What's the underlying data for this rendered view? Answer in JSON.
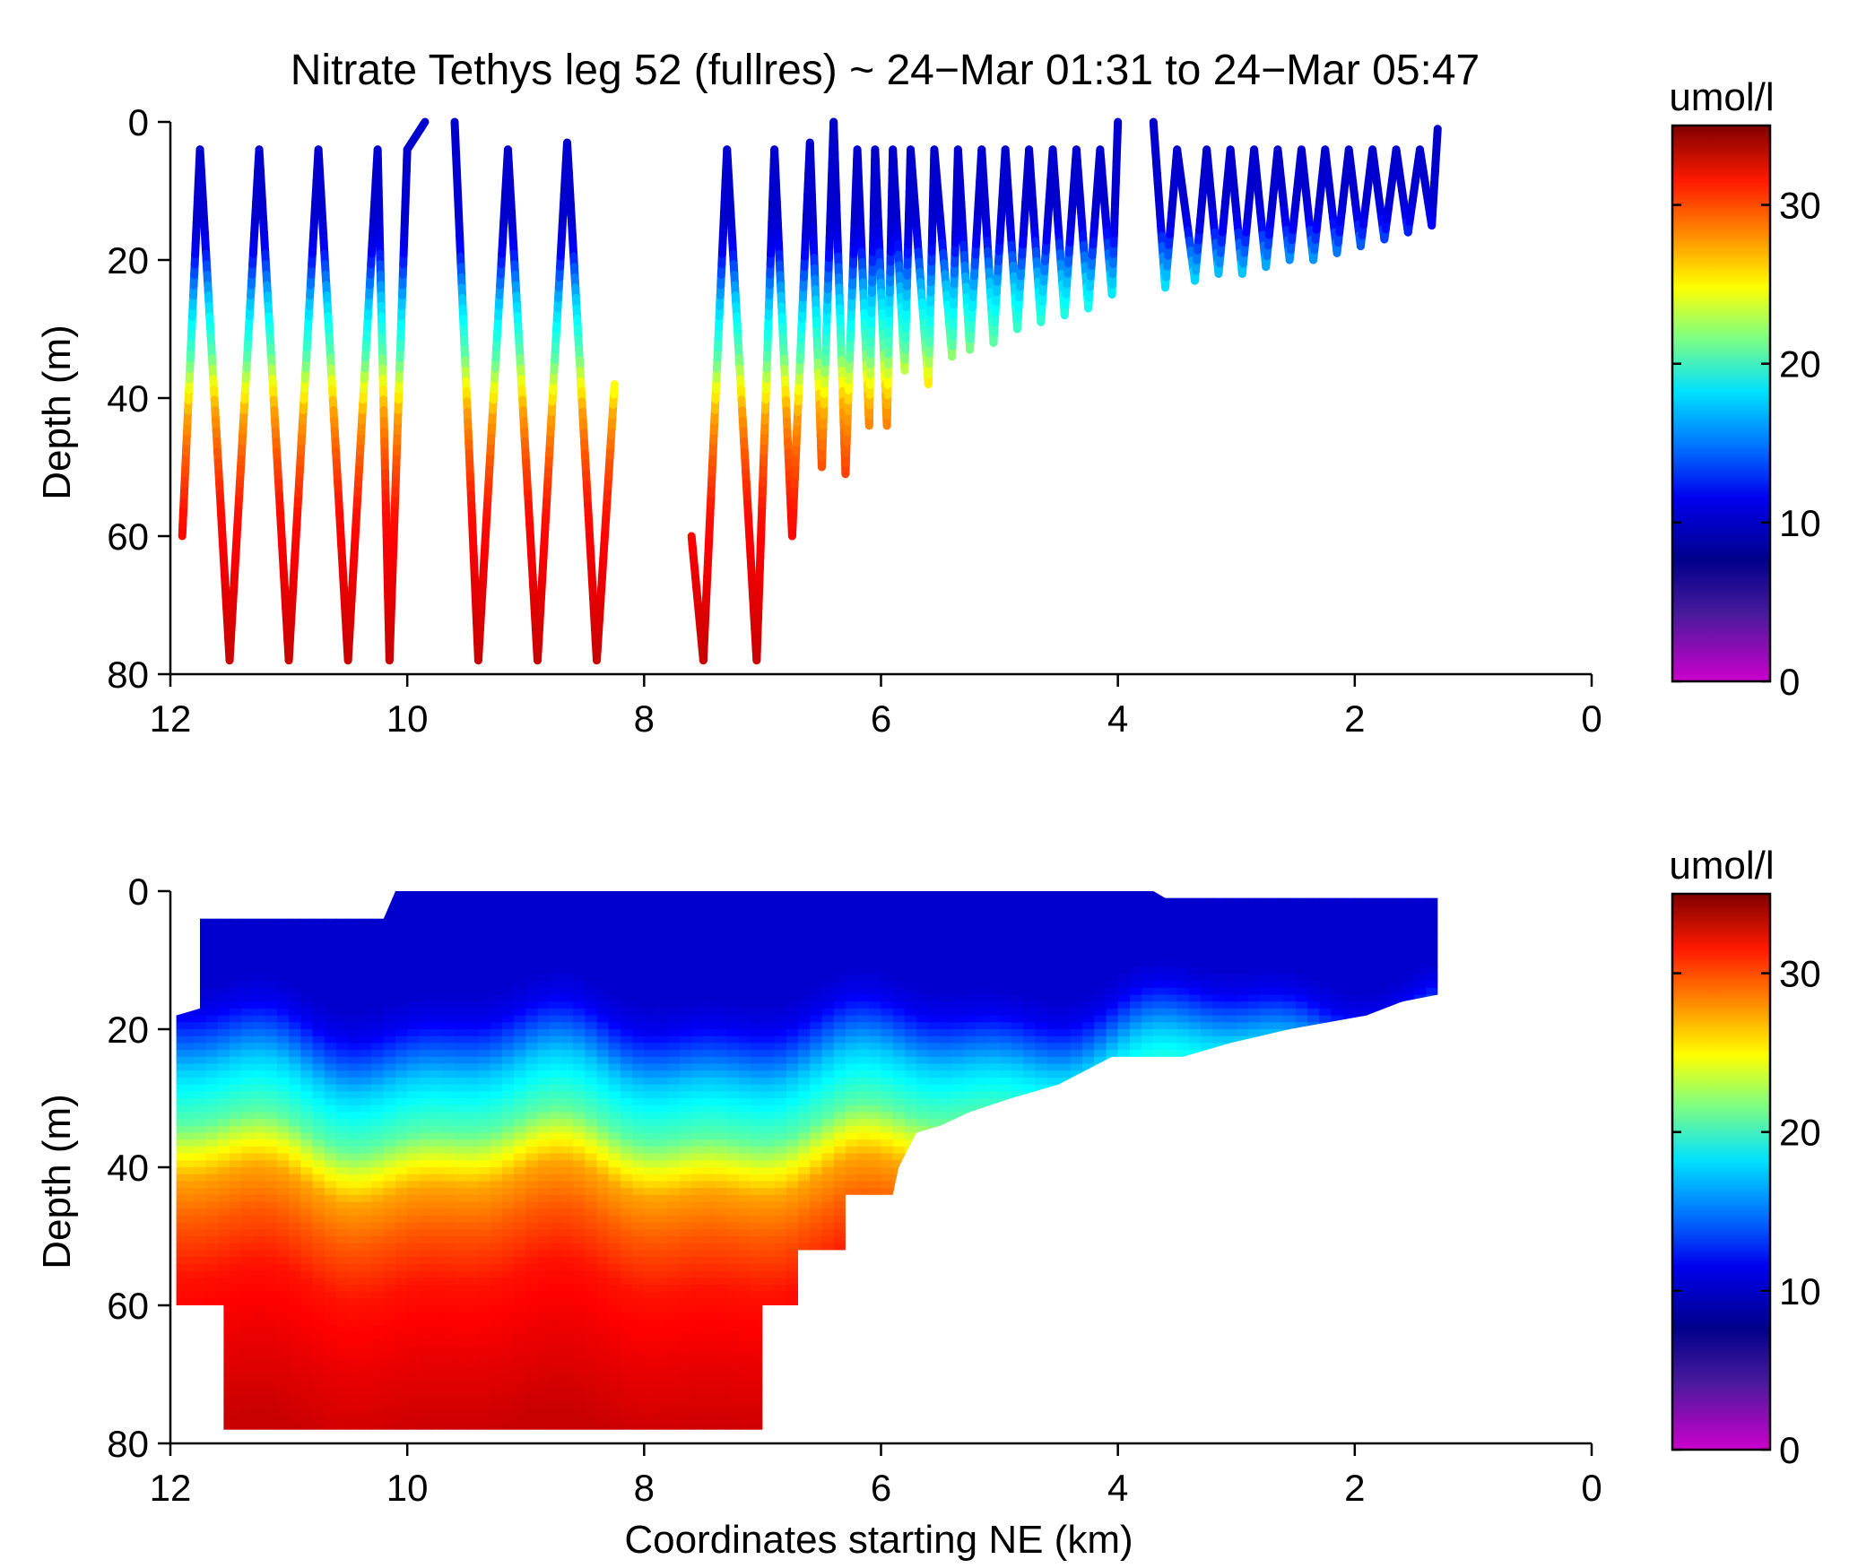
{
  "figure": {
    "title": "Nitrate Tethys leg 52 (fullres) ~ 24−Mar 01:31 to 24−Mar 05:47"
  },
  "colorbar": {
    "label": "umol/l",
    "range": [
      0,
      35
    ],
    "ticks": [
      "0",
      "10",
      "20",
      "30"
    ],
    "tick_values": [
      0,
      10,
      20,
      30
    ],
    "colormap": [
      "#cc00cc",
      "#2020a0",
      "#00008c",
      "#0000ff",
      "#0080ff",
      "#00ffff",
      "#80ff80",
      "#ffff00",
      "#ff8000",
      "#ff0000",
      "#800000"
    ]
  },
  "chart_data": [
    {
      "type": "scatter",
      "description_key": "top",
      "xlabel": "",
      "ylabel": "Depth (m)",
      "xlim": [
        12,
        0
      ],
      "ylim": [
        80,
        0
      ],
      "x_ticks": [
        "12",
        "10",
        "8",
        "6",
        "4",
        "2",
        "0"
      ],
      "x_tick_values": [
        12,
        10,
        8,
        6,
        4,
        2,
        0
      ],
      "y_ticks": [
        "0",
        "20",
        "40",
        "60",
        "80"
      ],
      "y_tick_values": [
        0,
        20,
        40,
        60,
        80
      ],
      "clim": [
        0,
        35
      ],
      "profiles": [
        {
          "segments": [
            [
              11.9,
              60
            ],
            [
              11.75,
              4
            ],
            [
              11.5,
              78
            ],
            [
              11.25,
              4
            ],
            [
              11.0,
              78
            ],
            [
              10.75,
              4
            ],
            [
              10.5,
              78
            ],
            [
              10.25,
              4
            ],
            [
              10.15,
              78
            ],
            [
              10.0,
              4
            ],
            [
              9.85,
              0
            ]
          ]
        },
        {
          "segments": [
            [
              9.6,
              0
            ],
            [
              9.4,
              78
            ],
            [
              9.15,
              4
            ],
            [
              8.9,
              78
            ],
            [
              8.65,
              3
            ],
            [
              8.4,
              78
            ],
            [
              8.25,
              38
            ]
          ]
        },
        {
          "segments": [
            [
              7.6,
              60
            ],
            [
              7.5,
              78
            ],
            [
              7.3,
              4
            ],
            [
              7.05,
              78
            ],
            [
              6.9,
              4
            ],
            [
              6.75,
              60
            ],
            [
              6.6,
              3
            ],
            [
              6.5,
              50
            ],
            [
              6.4,
              0
            ],
            [
              6.3,
              51
            ],
            [
              6.2,
              4
            ],
            [
              6.1,
              44
            ],
            [
              6.05,
              4
            ],
            [
              5.95,
              44
            ],
            [
              5.9,
              4
            ],
            [
              5.8,
              36
            ],
            [
              5.75,
              4
            ],
            [
              5.6,
              38
            ],
            [
              5.55,
              4
            ],
            [
              5.4,
              34
            ],
            [
              5.35,
              4
            ],
            [
              5.25,
              33
            ],
            [
              5.15,
              4
            ],
            [
              5.05,
              32
            ],
            [
              4.95,
              4
            ],
            [
              4.85,
              30
            ],
            [
              4.75,
              4
            ],
            [
              4.65,
              29
            ],
            [
              4.55,
              4
            ],
            [
              4.45,
              28
            ],
            [
              4.35,
              4
            ],
            [
              4.25,
              27
            ],
            [
              4.15,
              4
            ],
            [
              4.05,
              25
            ],
            [
              4.0,
              0
            ]
          ]
        },
        {
          "segments": [
            [
              3.7,
              0
            ],
            [
              3.6,
              24
            ],
            [
              3.5,
              4
            ],
            [
              3.35,
              23
            ],
            [
              3.25,
              4
            ],
            [
              3.15,
              22
            ],
            [
              3.05,
              4
            ],
            [
              2.95,
              22
            ],
            [
              2.85,
              4
            ],
            [
              2.75,
              21
            ],
            [
              2.65,
              4
            ],
            [
              2.55,
              20
            ],
            [
              2.45,
              4
            ],
            [
              2.35,
              20
            ],
            [
              2.25,
              4
            ],
            [
              2.15,
              19
            ],
            [
              2.05,
              4
            ],
            [
              1.95,
              18
            ],
            [
              1.85,
              4
            ],
            [
              1.75,
              17
            ],
            [
              1.65,
              4
            ],
            [
              1.55,
              16
            ],
            [
              1.45,
              4
            ],
            [
              1.35,
              15
            ],
            [
              1.3,
              1
            ]
          ]
        }
      ]
    },
    {
      "type": "heatmap",
      "description_key": "bottom",
      "xlabel": "Coordinates starting NE (km)",
      "ylabel": "Depth (m)",
      "xlim": [
        12,
        0
      ],
      "ylim": [
        80,
        0
      ],
      "x_ticks": [
        "12",
        "10",
        "8",
        "6",
        "4",
        "2",
        "0"
      ],
      "x_tick_values": [
        12,
        10,
        8,
        6,
        4,
        2,
        0
      ],
      "y_ticks": [
        "0",
        "20",
        "40",
        "60",
        "80"
      ],
      "y_tick_values": [
        0,
        20,
        40,
        60,
        80
      ],
      "clim": [
        0,
        35
      ],
      "outline_top": [
        [
          11.75,
          4
        ],
        [
          10.2,
          4
        ],
        [
          10.1,
          0
        ],
        [
          3.7,
          0
        ],
        [
          3.6,
          1
        ],
        [
          1.3,
          1
        ]
      ],
      "outline_bottom": [
        [
          11.95,
          48
        ],
        [
          11.95,
          60
        ],
        [
          11.55,
          60
        ],
        [
          11.55,
          78
        ],
        [
          7.5,
          78
        ],
        [
          7.35,
          78
        ],
        [
          7.0,
          78
        ],
        [
          7.0,
          60
        ],
        [
          6.7,
          60
        ],
        [
          6.7,
          52
        ],
        [
          6.3,
          52
        ],
        [
          6.3,
          44
        ],
        [
          5.9,
          44
        ],
        [
          5.85,
          40
        ],
        [
          5.7,
          35
        ],
        [
          5.5,
          34
        ],
        [
          5.25,
          32
        ],
        [
          4.9,
          30
        ],
        [
          4.5,
          28
        ],
        [
          4.05,
          24
        ],
        [
          3.45,
          24
        ],
        [
          3.05,
          22
        ],
        [
          2.55,
          20
        ],
        [
          1.9,
          18
        ],
        [
          1.6,
          16
        ],
        [
          1.3,
          15
        ]
      ],
      "depth_profile": [
        [
          0,
          9
        ],
        [
          14,
          9
        ],
        [
          18,
          10
        ],
        [
          22,
          13
        ],
        [
          26,
          16
        ],
        [
          30,
          18
        ],
        [
          34,
          20
        ],
        [
          38,
          24
        ],
        [
          42,
          27
        ],
        [
          48,
          29
        ],
        [
          56,
          31
        ],
        [
          66,
          32
        ],
        [
          78,
          33
        ]
      ]
    }
  ]
}
